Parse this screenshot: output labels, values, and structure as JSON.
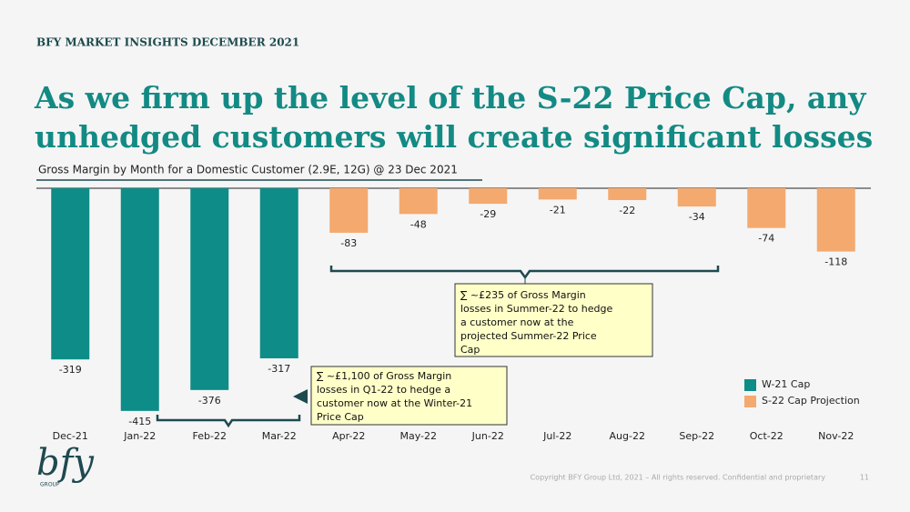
{
  "header": "BFY MARKET INSIGHTS DECEMBER 2021",
  "title_lines": [
    "As we firm up the level of the S-22 Price Cap, any",
    "unhedged customers will create significant losses"
  ],
  "chart_data": {
    "type": "bar",
    "subtitle": "Gross Margin by Month for a Domestic Customer (2.9E, 12G) @ 23 Dec 2021",
    "categories": [
      "Dec-21",
      "Jan-22",
      "Feb-22",
      "Mar-22",
      "Apr-22",
      "May-22",
      "Jun-22",
      "Jul-22",
      "Aug-22",
      "Sep-22",
      "Oct-22",
      "Nov-22"
    ],
    "series": [
      {
        "name": "W-21 Cap",
        "color": "#0e8c87",
        "values": [
          -319,
          -415,
          -376,
          -317,
          null,
          null,
          null,
          null,
          null,
          null,
          null,
          null
        ]
      },
      {
        "name": "S-22 Cap Projection",
        "color": "#f4a96e",
        "values": [
          null,
          null,
          null,
          null,
          -83,
          -48,
          -29,
          -21,
          -22,
          -34,
          -74,
          -118
        ]
      }
    ],
    "annotations": [
      [
        "∑ ~£235 of Gross Margin",
        "losses in Summer-22 to hedge",
        "a customer now at the",
        "projected Summer-22 Price",
        "Cap"
      ],
      [
        "∑ ~£1,100 of Gross Margin",
        "losses in Q1-22 to hedge a",
        "customer now at the Winter-21",
        "Price Cap"
      ]
    ]
  },
  "footer": {
    "logo": "bfy",
    "logo_sub": "GROUP",
    "copyright": "Copyright BFY Group Ltd, 2021 – All rights reserved. Confidential and proprietary",
    "page": "11"
  }
}
